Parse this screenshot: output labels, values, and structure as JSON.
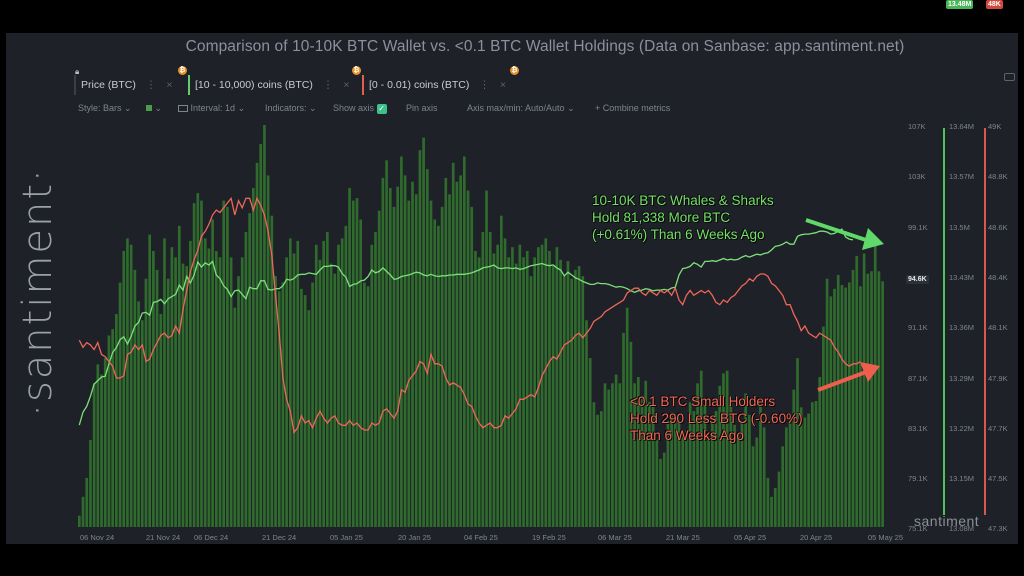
{
  "title": "Comparison of 10-10K BTC Wallet vs. <0.1 BTC Wallet Holdings (Data on Sanbase: app.santiment.net)",
  "brand": "·santiment·",
  "watermark": "santiment",
  "legend": [
    {
      "label": "Price (BTC)",
      "color": "#3a3f47"
    },
    {
      "label": "[10 - 10,000) coins (BTC)",
      "color": "#5fd06a"
    },
    {
      "label": "[0 - 0.01) coins (BTC)",
      "color": "#e06050"
    }
  ],
  "coin_glyph": "₿",
  "menu_glyph": "⋮",
  "close_glyph": "×",
  "toolbar": {
    "style": "Style: Bars",
    "interval": "Interval: 1d",
    "indicators": "Indicators:",
    "show_axis": "Show axis",
    "pin_axis": "Pin axis",
    "axis_maxmin": "Axis max/min: Auto/Auto",
    "combine": "+ Combine metrics",
    "caret": "⌄"
  },
  "annotations": {
    "whales": [
      "10-10K BTC Whales & Sharks",
      "Hold 81,338 More BTC",
      "(+0.61%) Than 6 Weeks Ago"
    ],
    "small": [
      "<0.1 BTC Small Holders",
      "Hold 290 Less BTC (-0.60%)",
      "Than 6 Weeks Ago"
    ]
  },
  "colors": {
    "price": "#2f6b2c",
    "whales": "#7ce07a",
    "small": "#f0655a",
    "bg": "#1e2128"
  },
  "chart_data": {
    "type": "bar",
    "title": "Comparison of 10-10K BTC Wallet vs. <0.1 BTC Wallet Holdings (Data on Sanbase: app.santiment.net)",
    "x_labels": [
      "06 Nov 24",
      "21 Nov 24",
      "06 Dec 24",
      "21 Dec 24",
      "05 Jan 25",
      "20 Jan 25",
      "04 Feb 25",
      "19 Feb 25",
      "06 Mar 25",
      "21 Mar 25",
      "05 Apr 25",
      "20 Apr 25",
      "05 May 25"
    ],
    "axes": {
      "price": {
        "ticks": [
          "107K",
          "103K",
          "99.1K",
          "95.1K",
          "91.1K",
          "87.1K",
          "83.1K",
          "79.1K",
          "75.1K"
        ],
        "ylim": [
          75100,
          107000
        ],
        "current": "94.6K"
      },
      "whales": {
        "ticks": [
          "13.64M",
          "13.57M",
          "13.5M",
          "13.43M",
          "13.36M",
          "13.29M",
          "13.22M",
          "13.15M",
          "13.08M"
        ],
        "ylim": [
          13080000,
          13640000
        ],
        "current": "13.48M"
      },
      "small": {
        "ticks": [
          "49K",
          "48.8K",
          "48.6K",
          "48.4K",
          "48.1K",
          "47.9K",
          "47.7K",
          "47.5K",
          "47.3K"
        ],
        "ylim": [
          47300,
          49000
        ],
        "current": "48K"
      }
    },
    "series": [
      {
        "name": "Price (BTC)",
        "type": "bar",
        "values": [
          76000,
          77500,
          79000,
          82000,
          86500,
          88000,
          87200,
          88500,
          90300,
          90800,
          92000,
          94500,
          97000,
          98000,
          97500,
          95500,
          93000,
          91500,
          94800,
          98300,
          97000,
          95500,
          92000,
          98000,
          94800,
          97300,
          96500,
          99000,
          96000,
          95800,
          97800,
          100800,
          101600,
          101000,
          98000,
          97200,
          99500,
          97000,
          96500,
          101000,
          100500,
          96500,
          92500,
          95000,
          96500,
          98500,
          100000,
          102000,
          104000,
          105500,
          107000,
          103000,
          99800,
          95000,
          93800,
          94500,
          96500,
          98000,
          96800,
          97800,
          94000,
          93500,
          92300,
          94500,
          97500,
          96300,
          97800,
          98500,
          96000,
          95200,
          97500,
          98000,
          99000,
          102000,
          101000,
          101200,
          99500,
          94500,
          94200,
          97500,
          98500,
          100200,
          102800,
          104200,
          102000,
          100500,
          102100,
          104500,
          103000,
          101000,
          102500,
          101500,
          105000,
          106000,
          103500,
          101000,
          99500,
          99000,
          100500,
          102800,
          101500,
          104000,
          102500,
          103000,
          104500,
          101800,
          100500,
          97000,
          96500,
          98500,
          101800,
          98500,
          96800,
          97500,
          99800,
          98000,
          96500,
          97300,
          96000,
          97500,
          96500,
          97000,
          95000,
          96500,
          97300,
          97500,
          98000,
          97000,
          95800,
          97300,
          96300,
          95000,
          96200,
          94800,
          95500,
          95800,
          95000,
          91500,
          88500,
          85000,
          84000,
          84300,
          86500,
          86000,
          86500,
          87200,
          86500,
          90500,
          92500,
          89800,
          86500,
          87000,
          85500,
          86700,
          85000,
          84800,
          82000,
          80500,
          81000,
          83500,
          84200,
          84000,
          83500,
          82500,
          82800,
          85000,
          84300,
          86500,
          87500,
          84800,
          82000,
          83500,
          84300,
          86300,
          87300,
          87500,
          85300,
          83200,
          82400,
          83500,
          85700,
          84000,
          81500,
          82200,
          85000,
          83000,
          79000,
          77500,
          78200,
          79500,
          81500,
          83000,
          84000,
          86000,
          88500,
          84600,
          83800,
          84100,
          85000,
          85100,
          87000,
          91000,
          94800,
          93400,
          94000,
          95100,
          94300,
          94100,
          94500,
          95500,
          96600,
          94200,
          96800,
          95200,
          95400,
          97800,
          95400,
          94600
        ]
      },
      {
        "name": "[10 - 10,000) coins (BTC)",
        "type": "line",
        "values": [
          13222000,
          13240000,
          13248000,
          13262000,
          13279000,
          13284000,
          13289000,
          13290000,
          13307000,
          13323000,
          13330000,
          13341000,
          13345000,
          13335000,
          13346000,
          13360000,
          13365000,
          13378000,
          13379000,
          13375000,
          13393000,
          13394000,
          13397000,
          13391000,
          13398000,
          13401000,
          13404000,
          13417000,
          13410000,
          13429000,
          13420000,
          13431000,
          13449000,
          13442000,
          13448000,
          13445000,
          13450000,
          13431000,
          13426000,
          13416000,
          13411000,
          13401000,
          13409000,
          13410000,
          13404000,
          13398000,
          13414000,
          13412000,
          13412000,
          13423000,
          13423000,
          13411000,
          13410000,
          13412000,
          13412000,
          13416000,
          13425000,
          13424000,
          13426000,
          13431000,
          13432000,
          13432000,
          13434000,
          13433000,
          13432000,
          13438000,
          13443000,
          13443000,
          13444000,
          13444000,
          13442000,
          13433000,
          13428000,
          13415000,
          13418000,
          13419000,
          13423000,
          13424000,
          13429000,
          13438000,
          13434000,
          13436000,
          13441000,
          13436000,
          13431000,
          13425000,
          13426000,
          13429000,
          13430000,
          13431000,
          13433000,
          13435000,
          13434000,
          13431000,
          13430000,
          13432000,
          13430000,
          13429000,
          13430000,
          13430000,
          13431000,
          13431000,
          13432000,
          13432000,
          13432000,
          13433000,
          13434000,
          13436000,
          13438000,
          13441000,
          13442000,
          13443000,
          13445000,
          13441000,
          13440000,
          13441000,
          13441000,
          13440000,
          13441000,
          13439000,
          13440000,
          13442000,
          13444000,
          13445000,
          13446000,
          13447000,
          13445000,
          13444000,
          13445000,
          13441000,
          13438000,
          13430000,
          13435000,
          13431000,
          13427000,
          13425000,
          13422000,
          13420000,
          13418000,
          13418000,
          13420000,
          13419000,
          13419000,
          13418000,
          13416000,
          13414000,
          13415000,
          13414000,
          13412000,
          13409000,
          13407000,
          13409000,
          13410000,
          13412000,
          13411000,
          13409000,
          13410000,
          13410000,
          13411000,
          13410000,
          13413000,
          13414000,
          13431000,
          13440000,
          13441000,
          13443000,
          13448000,
          13446000,
          13442000,
          13450000,
          13450000,
          13451000,
          13450000,
          13452000,
          13454000,
          13452000,
          13453000,
          13452000,
          13453000,
          13456000,
          13458000,
          13456000,
          13458000,
          13460000,
          13459000,
          13461000,
          13462000,
          13466000,
          13471000,
          13472000,
          13474000,
          13477000,
          13474000,
          13474000,
          13485000,
          13487000,
          13488000,
          13488000,
          13489000,
          13490000,
          13492000,
          13492000,
          13491000,
          13488000,
          13489000,
          13492000,
          13495000,
          13484000,
          13481000,
          13480000
        ]
      },
      {
        "name": "[0 - 0.01) coins (BTC)",
        "type": "line",
        "values": [
          48090,
          48060,
          48080,
          48070,
          48050,
          48080,
          48030,
          48020,
          48000,
          47980,
          47930,
          47930,
          47940,
          48030,
          48040,
          48070,
          48050,
          48070,
          48000,
          48010,
          48050,
          48080,
          48110,
          48120,
          48100,
          48110,
          48150,
          48120,
          48220,
          48300,
          48380,
          48430,
          48470,
          48530,
          48550,
          48580,
          48620,
          48640,
          48630,
          48650,
          48670,
          48690,
          48620,
          48680,
          48650,
          48690,
          48690,
          48640,
          48690,
          48660,
          48620,
          48550,
          48450,
          48280,
          48120,
          47930,
          47840,
          47790,
          47700,
          47720,
          47770,
          47740,
          47750,
          47720,
          47760,
          47790,
          47760,
          47740,
          47760,
          47770,
          47740,
          47730,
          47730,
          47750,
          47730,
          47740,
          47720,
          47710,
          47710,
          47740,
          47730,
          47740,
          47790,
          47800,
          47780,
          47760,
          47790,
          47880,
          47870,
          47920,
          47940,
          47960,
          48000,
          47990,
          47950,
          48030,
          47990,
          47990,
          47980,
          47930,
          47900,
          47910,
          47900,
          47890,
          47860,
          47820,
          47810,
          47770,
          47740,
          47720,
          47730,
          47740,
          47720,
          47720,
          47730,
          47770,
          47760,
          47780,
          47800,
          47840,
          47840,
          47850,
          47860,
          47850,
          47890,
          47940,
          47970,
          48000,
          48020,
          48010,
          48040,
          48070,
          48080,
          48090,
          48110,
          48120,
          48100,
          48120,
          48140,
          48170,
          48180,
          48190,
          48210,
          48220,
          48230,
          48240,
          48250,
          48260,
          48290,
          48300,
          48310,
          48310,
          48290,
          48280,
          48300,
          48290,
          48280,
          48300,
          48290,
          48300,
          48280,
          48310,
          48260,
          48240,
          48280,
          48300,
          48280,
          48290,
          48300,
          48290,
          48300,
          48280,
          48250,
          48240,
          48260,
          48250,
          48270,
          48280,
          48300,
          48320,
          48330,
          48350,
          48340,
          48360,
          48370,
          48370,
          48360,
          48330,
          48320,
          48300,
          48280,
          48240,
          48240,
          48200,
          48170,
          48130,
          48150,
          48120,
          48110,
          48100,
          48120,
          48110,
          48100,
          48090,
          48060,
          48040,
          48010,
          47990,
          47980,
          47990,
          47990,
          48000
        ]
      }
    ]
  }
}
